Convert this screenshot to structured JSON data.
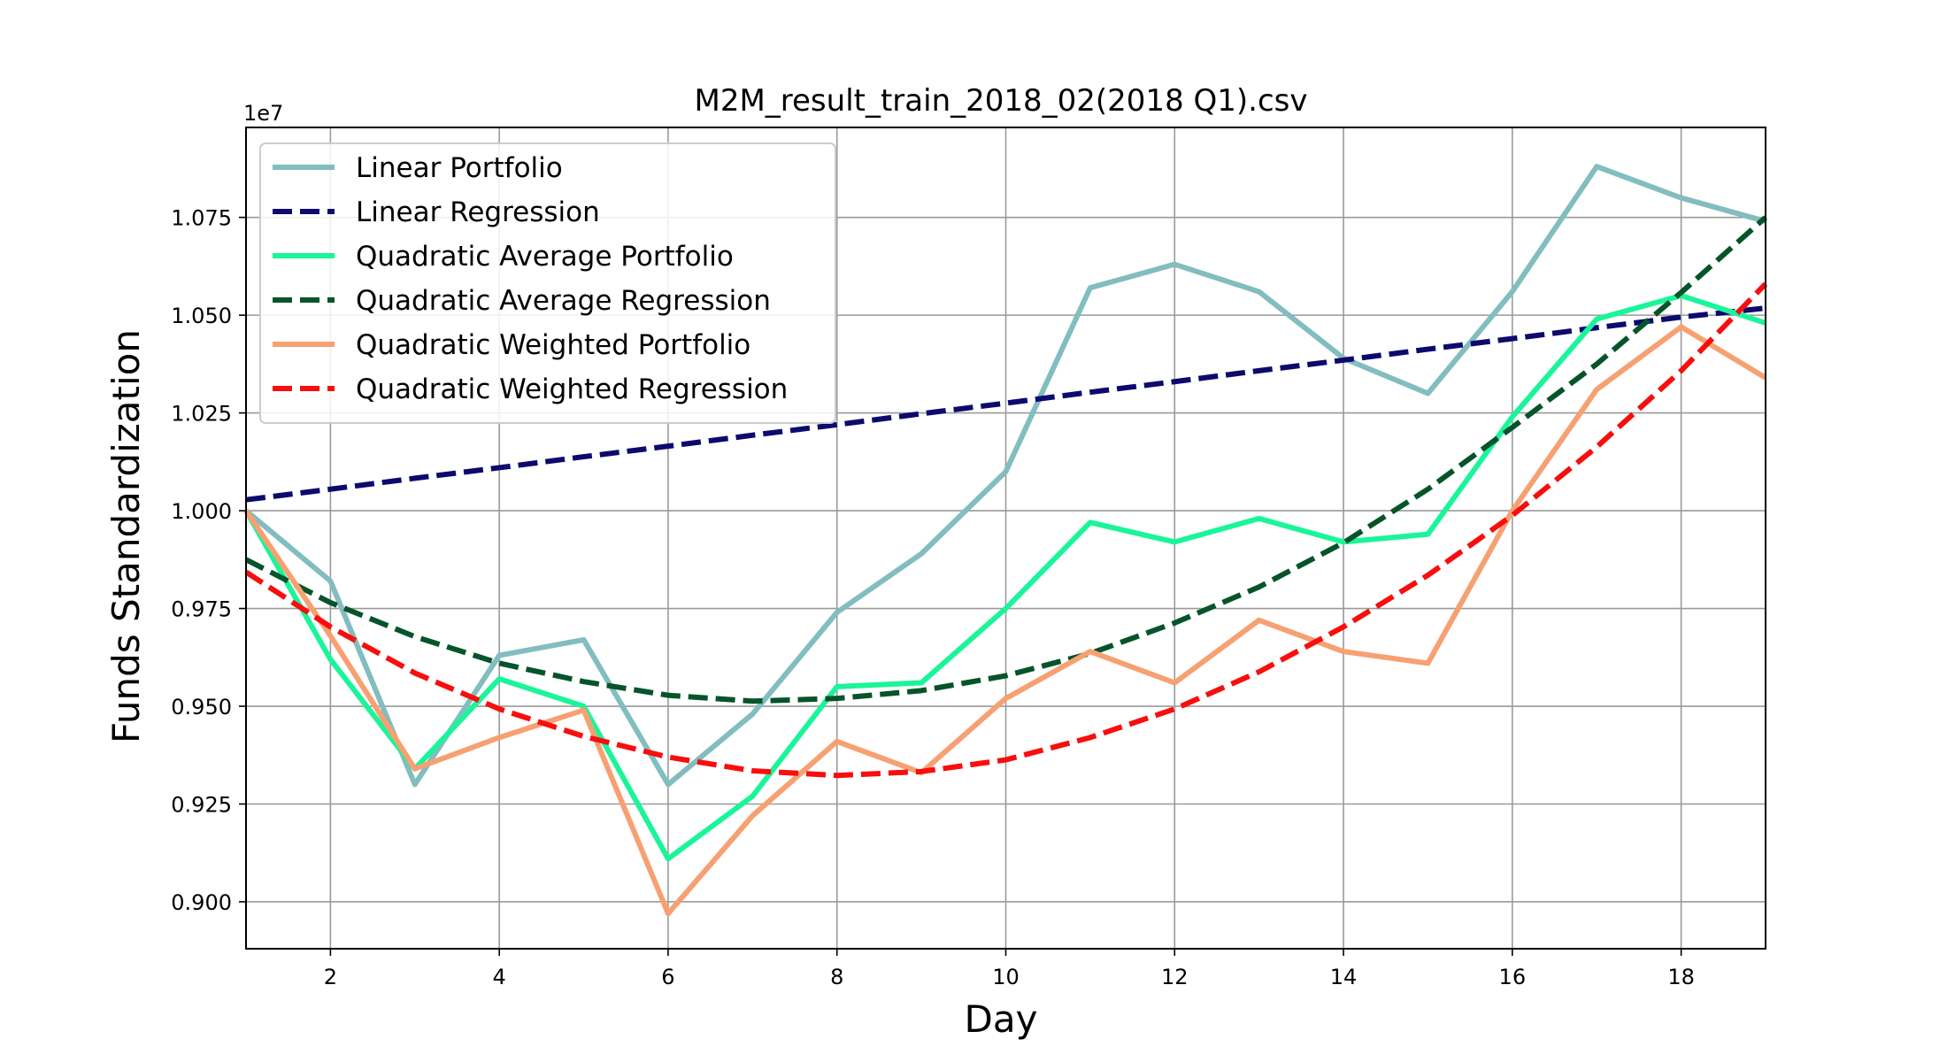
{
  "chart_data": {
    "type": "line",
    "title": "M2M_result_train_2018_02(2018 Q1).csv",
    "xlabel": "Day",
    "ylabel": "Funds Standardization",
    "y_offset_label": "1e7",
    "xlim": [
      1,
      19
    ],
    "ylim": [
      0.888,
      1.098
    ],
    "x_ticks": [
      2,
      4,
      6,
      8,
      10,
      12,
      14,
      16,
      18
    ],
    "y_ticks": [
      0.9,
      0.925,
      0.95,
      0.975,
      1.0,
      1.025,
      1.05,
      1.075
    ],
    "y_tick_labels": [
      "0.900",
      "0.925",
      "0.950",
      "0.975",
      "1.000",
      "1.025",
      "1.050",
      "1.075"
    ],
    "grid": true,
    "legend_position": "top-left",
    "x": [
      1,
      2,
      3,
      4,
      5,
      6,
      7,
      8,
      9,
      10,
      11,
      12,
      13,
      14,
      15,
      16,
      17,
      18,
      19
    ],
    "series": [
      {
        "name": "Linear Portfolio",
        "color": "#82bdbf",
        "dash": "solid",
        "values": [
          1.0,
          0.982,
          0.93,
          0.963,
          0.967,
          0.93,
          0.948,
          0.974,
          0.989,
          1.01,
          1.057,
          1.063,
          1.056,
          1.039,
          1.03,
          1.056,
          1.088,
          1.08,
          1.074
        ]
      },
      {
        "name": "Linear Regression",
        "color": "#0c0a6e",
        "dash": "dashed",
        "values": [
          1.0028,
          1.0055,
          1.0083,
          1.011,
          1.0138,
          1.0165,
          1.0193,
          1.022,
          1.0248,
          1.0275,
          1.0303,
          1.033,
          1.0358,
          1.0385,
          1.0413,
          1.044,
          1.0468,
          1.0495,
          1.0518
        ]
      },
      {
        "name": "Quadratic Average Portfolio",
        "color": "#1af59a",
        "dash": "solid",
        "values": [
          1.0,
          0.962,
          0.934,
          0.957,
          0.95,
          0.911,
          0.927,
          0.955,
          0.956,
          0.975,
          0.997,
          0.992,
          0.998,
          0.992,
          0.994,
          1.024,
          1.049,
          1.055,
          1.048
        ]
      },
      {
        "name": "Quadratic Average Regression",
        "color": "#06542a",
        "dash": "dashed",
        "values": [
          0.9875,
          0.9765,
          0.9678,
          0.961,
          0.9563,
          0.9528,
          0.9513,
          0.952,
          0.954,
          0.9578,
          0.9635,
          0.9713,
          0.9805,
          0.9918,
          1.0055,
          1.0213,
          1.0375,
          1.0558,
          1.075
        ]
      },
      {
        "name": "Quadratic Weighted Portfolio",
        "color": "#f7a072",
        "dash": "solid",
        "values": [
          1.0,
          0.968,
          0.934,
          0.942,
          0.949,
          0.897,
          0.922,
          0.941,
          0.933,
          0.952,
          0.964,
          0.956,
          0.972,
          0.964,
          0.961,
          1.0,
          1.031,
          1.047,
          1.034
        ]
      },
      {
        "name": "Quadratic Weighted Regression",
        "color": "#f90d0d",
        "dash": "dashed",
        "values": [
          0.9843,
          0.9703,
          0.9585,
          0.9493,
          0.9423,
          0.937,
          0.9335,
          0.9323,
          0.9333,
          0.9363,
          0.942,
          0.9493,
          0.9588,
          0.9703,
          0.9835,
          0.9988,
          1.0163,
          1.0358,
          1.058
        ]
      }
    ]
  }
}
